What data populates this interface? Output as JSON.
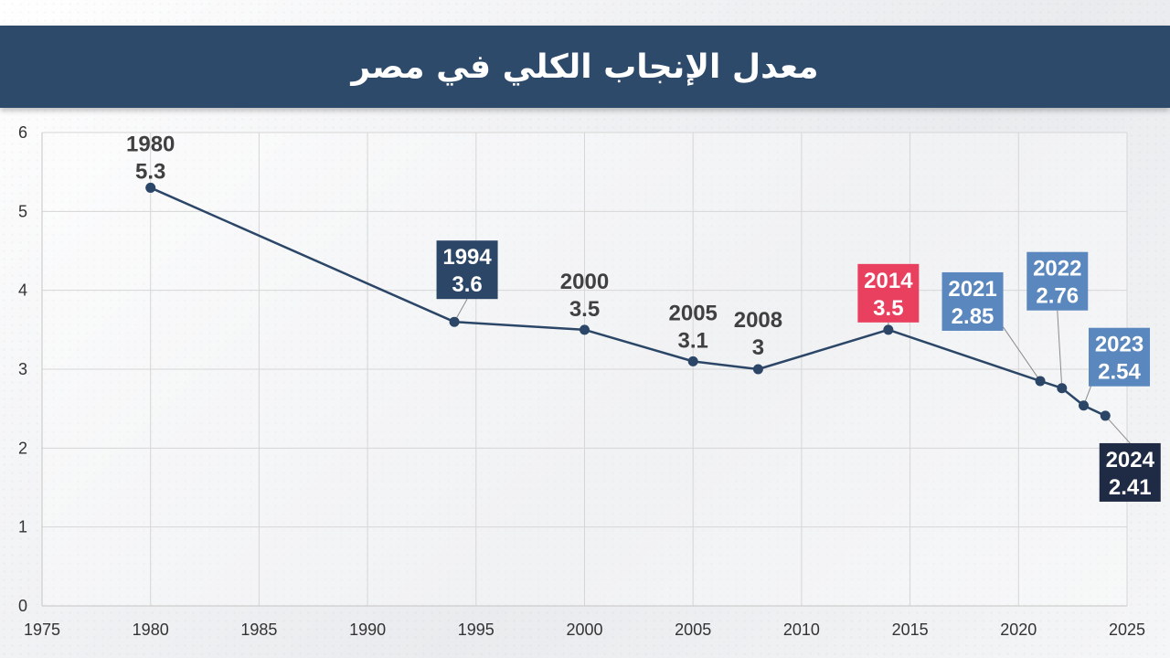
{
  "header": {
    "title": "معدل الإنجاب الكلي في مصر"
  },
  "chart_data": {
    "type": "line",
    "title": "معدل الإنجاب الكلي في مصر",
    "xlabel": "",
    "ylabel": "",
    "xlim": [
      1975,
      2025
    ],
    "ylim": [
      0,
      6
    ],
    "x_ticks": [
      1975,
      1980,
      1985,
      1990,
      1995,
      2000,
      2005,
      2010,
      2015,
      2020,
      2025
    ],
    "y_ticks": [
      0,
      1,
      2,
      3,
      4,
      5,
      6
    ],
    "grid": true,
    "line_color": "#2b4667",
    "points": [
      {
        "x": 1980,
        "y": 5.3,
        "year_label": "1980",
        "value_label": "5.3",
        "label_style": "plain"
      },
      {
        "x": 1994,
        "y": 3.6,
        "year_label": "1994",
        "value_label": "3.6",
        "label_style": "box-dark"
      },
      {
        "x": 2000,
        "y": 3.5,
        "year_label": "2000",
        "value_label": "3.5",
        "label_style": "plain"
      },
      {
        "x": 2005,
        "y": 3.1,
        "year_label": "2005",
        "value_label": "3.1",
        "label_style": "plain"
      },
      {
        "x": 2008,
        "y": 3.0,
        "year_label": "2008",
        "value_label": "3",
        "label_style": "plain"
      },
      {
        "x": 2014,
        "y": 3.5,
        "year_label": "2014",
        "value_label": "3.5",
        "label_style": "box-red"
      },
      {
        "x": 2021,
        "y": 2.85,
        "year_label": "2021",
        "value_label": "2.85",
        "label_style": "box-blue"
      },
      {
        "x": 2022,
        "y": 2.76,
        "year_label": "2022",
        "value_label": "2.76",
        "label_style": "box-blue"
      },
      {
        "x": 2023,
        "y": 2.54,
        "year_label": "2023",
        "value_label": "2.54",
        "label_style": "box-blue"
      },
      {
        "x": 2024,
        "y": 2.41,
        "year_label": "2024",
        "value_label": "2.41",
        "label_style": "box-navy"
      }
    ],
    "colors": {
      "box-dark": "#2b4667",
      "box-red": "#e8405e",
      "box-blue": "#5a87bd",
      "box-navy": "#1f2a44",
      "plain_text": "#404040",
      "grid": "#d6d6d6"
    }
  }
}
